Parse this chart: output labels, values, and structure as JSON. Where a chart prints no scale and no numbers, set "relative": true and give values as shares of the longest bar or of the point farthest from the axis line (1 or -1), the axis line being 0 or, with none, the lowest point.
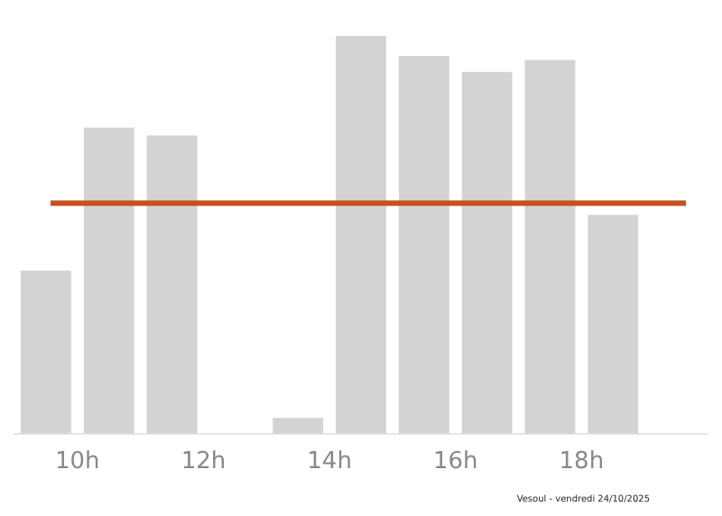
{
  "chart_data": {
    "type": "bar",
    "relative": true,
    "x": [
      9.5,
      10.5,
      11.5,
      12.5,
      13.5,
      14.5,
      15.5,
      16.5,
      17.5,
      18.5,
      19.5
    ],
    "values": [
      0.41,
      0.77,
      0.75,
      0,
      0.04,
      1,
      0.95,
      0.91,
      0.94,
      0.55,
      0
    ],
    "color": "#d3d3d3",
    "xlim": [
      9,
      20
    ],
    "xticks": [
      {
        "value": 10,
        "label": "10h"
      },
      {
        "value": 12,
        "label": "12h"
      },
      {
        "value": 14,
        "label": "14h"
      },
      {
        "value": 16,
        "label": "16h"
      },
      {
        "value": 18,
        "label": "18h"
      }
    ],
    "ref_lines": [
      {
        "axis": "y",
        "value": 0.58,
        "color": "#c8501e"
      }
    ],
    "grid": false,
    "legend": false,
    "annotations": [
      "Vesoul - vendredi 24/10/2025"
    ]
  }
}
